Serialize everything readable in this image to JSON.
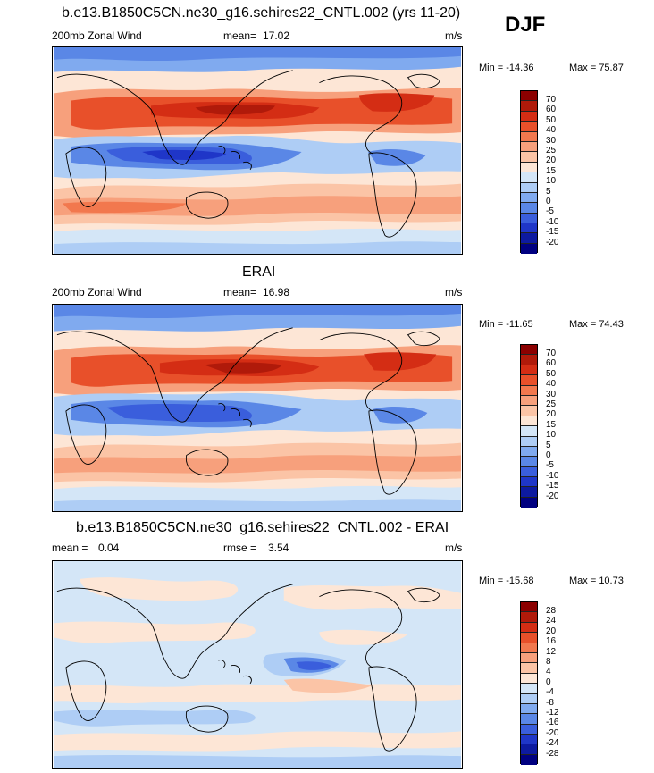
{
  "season_label": "DJF",
  "units": "m/s",
  "panels": [
    {
      "title": "b.e13.B1850C5CN.ne30_g16.sehires22_CNTL.002 (yrs 11-20)",
      "left_label": "200mb Zonal Wind",
      "stat_label": "mean=",
      "stat_value": "17.02",
      "units": "m/s",
      "min_label": "Min = -14.36",
      "max_label": "Max =  75.87",
      "colorbar_labels": [
        "70",
        "60",
        "50",
        "40",
        "30",
        "25",
        "20",
        "15",
        "10",
        "5",
        "0",
        "-5",
        "-10",
        "-15",
        "-20"
      ]
    },
    {
      "title": "ERAI",
      "left_label": "200mb Zonal Wind",
      "stat_label": "mean=",
      "stat_value": "16.98",
      "units": "m/s",
      "min_label": "Min = -11.65",
      "max_label": "Max =  74.43",
      "colorbar_labels": [
        "70",
        "60",
        "50",
        "40",
        "30",
        "25",
        "20",
        "15",
        "10",
        "5",
        "0",
        "-5",
        "-10",
        "-15",
        "-20"
      ]
    },
    {
      "title": "b.e13.B1850C5CN.ne30_g16.sehires22_CNTL.002 - ERAI",
      "left_label": "mean =",
      "left_value": "0.04",
      "stat_label": "rmse =",
      "stat_value": "3.54",
      "units": "m/s",
      "min_label": "Min = -15.68",
      "max_label": "Max =  10.73",
      "colorbar_labels": [
        "28",
        "24",
        "20",
        "16",
        "12",
        "8",
        "4",
        "0",
        "-4",
        "-8",
        "-12",
        "-16",
        "-20",
        "-24",
        "-28"
      ]
    }
  ],
  "palette": [
    "#8b0000",
    "#b01a0a",
    "#d42d14",
    "#e8502a",
    "#f2784e",
    "#f7a07c",
    "#fbc4a6",
    "#fde6d6",
    "#d4e6f7",
    "#aecdf5",
    "#80aaef",
    "#5a87e6",
    "#3a5edc",
    "#1f36c8",
    "#0d1aa0",
    "#000080"
  ],
  "colors": {
    "land_outline": "#000000",
    "border": "#000000"
  }
}
